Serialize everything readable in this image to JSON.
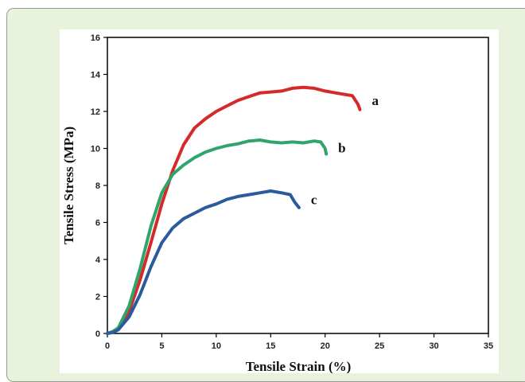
{
  "colors": {
    "frame_background": "#e9f2dc",
    "frame_border": "#9a9a9a",
    "plot_background": "#ffffff",
    "axis": "#000000"
  },
  "chart_data": {
    "type": "line",
    "title": "",
    "xlabel": "Tensile Strain (%)",
    "ylabel": "Tensile Stress (MPa)",
    "xlim": [
      0,
      35
    ],
    "ylim": [
      0,
      16
    ],
    "xticks": [
      0,
      5,
      10,
      15,
      20,
      25,
      30,
      35
    ],
    "yticks": [
      0,
      2,
      4,
      6,
      8,
      10,
      12,
      14,
      16
    ],
    "xtick_labels": [
      "0",
      "5",
      "10",
      "15",
      "20",
      "25",
      "30",
      "35"
    ],
    "ytick_labels": [
      "0",
      "2",
      "4",
      "6",
      "8",
      "10",
      "12",
      "14",
      "16"
    ],
    "grid": false,
    "legend": "none",
    "series": [
      {
        "name": "a",
        "color": "#d42a2a",
        "x": [
          0,
          0.5,
          1,
          2,
          3,
          4,
          5,
          6,
          7,
          8,
          9,
          10,
          11,
          12,
          13,
          14,
          15,
          16,
          17,
          18,
          19,
          20,
          21,
          22,
          22.5,
          23,
          23.2
        ],
        "y": [
          0,
          0.1,
          0.3,
          1.2,
          2.9,
          4.9,
          7.0,
          8.8,
          10.2,
          11.1,
          11.6,
          12.0,
          12.3,
          12.6,
          12.8,
          13.0,
          13.05,
          13.1,
          13.25,
          13.3,
          13.25,
          13.1,
          13.0,
          12.9,
          12.85,
          12.4,
          12.1
        ]
      },
      {
        "name": "b",
        "color": "#2fa56c",
        "x": [
          0,
          0.5,
          1,
          2,
          3,
          4,
          5,
          6,
          7,
          8,
          9,
          10,
          11,
          12,
          13,
          14,
          15,
          16,
          17,
          18,
          19,
          19.6,
          20,
          20.1
        ],
        "y": [
          0,
          0.1,
          0.3,
          1.5,
          3.5,
          5.8,
          7.6,
          8.6,
          9.1,
          9.5,
          9.8,
          10.0,
          10.15,
          10.25,
          10.4,
          10.45,
          10.35,
          10.3,
          10.35,
          10.3,
          10.4,
          10.35,
          10.0,
          9.7
        ]
      },
      {
        "name": "c",
        "color": "#2b5b9c",
        "x": [
          0,
          0.5,
          1,
          2,
          3,
          4,
          5,
          6,
          7,
          8,
          9,
          10,
          11,
          12,
          13,
          14,
          15,
          16,
          16.8,
          17.2,
          17.6
        ],
        "y": [
          0,
          0.05,
          0.2,
          0.9,
          2.1,
          3.6,
          4.9,
          5.7,
          6.2,
          6.5,
          6.8,
          7.0,
          7.25,
          7.4,
          7.5,
          7.6,
          7.7,
          7.6,
          7.5,
          7.1,
          6.8
        ]
      }
    ]
  }
}
